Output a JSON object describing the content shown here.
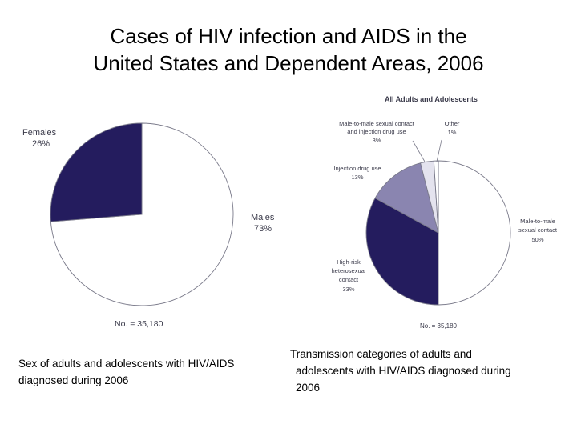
{
  "title": {
    "line1": "Cases of HIV infection and AIDS in the",
    "line2": "United States and Dependent Areas, 2006"
  },
  "chart_data": [
    {
      "type": "pie",
      "title": "",
      "slices": [
        {
          "label": "Males",
          "value": 73,
          "color": "#ffffff",
          "line1": "Males",
          "line2": "73%"
        },
        {
          "label": "Females",
          "value": 26,
          "color": "#241c5e",
          "line1": "Females",
          "line2": "26%"
        }
      ],
      "note": "No. = 35,180",
      "caption_line1": "Sex of adults and adolescents with HIV/AIDS",
      "caption_line2": "diagnosed during 2006"
    },
    {
      "type": "pie",
      "title": "All Adults and Adolescents",
      "slices": [
        {
          "label": "Male-to-male sexual contact",
          "value": 50,
          "color": "#ffffff",
          "lines": [
            "Male-to-male",
            "sexual contact",
            "50%"
          ]
        },
        {
          "label": "High-risk heterosexual contact",
          "value": 33,
          "color": "#241c5e",
          "lines": [
            "High-risk",
            "heterosexual",
            "contact",
            "33%"
          ]
        },
        {
          "label": "Injection drug use",
          "value": 13,
          "color": "#8a85b0",
          "lines": [
            "Injection drug use",
            "13%"
          ]
        },
        {
          "label": "Male-to-male sexual contact and injection drug use",
          "value": 3,
          "color": "#e4e3ee",
          "lines": [
            "Male-to-male sexual contact",
            "and injection drug use",
            "3%"
          ]
        },
        {
          "label": "Other",
          "value": 1,
          "color": "#ffffff",
          "lines": [
            "Other",
            "1%"
          ]
        }
      ],
      "note": "No. = 35,180",
      "caption_line1": "Transmission categories of adults  and",
      "caption_line2": "adolescents with HIV/AIDS diagnosed during",
      "caption_line3": "2006"
    }
  ],
  "colors": {
    "dark": "#241c5e",
    "medium": "#8a85b0",
    "light": "#e4e3ee",
    "outline": "#7a7a8a"
  }
}
